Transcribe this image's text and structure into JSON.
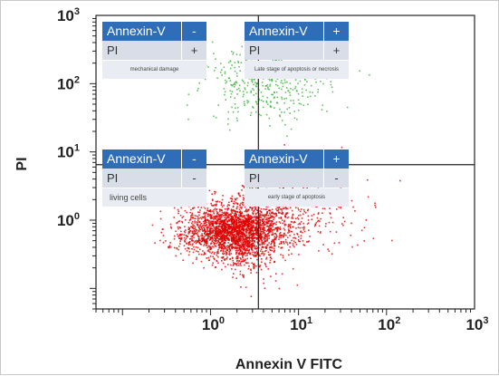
{
  "chart_data": {
    "type": "scatter",
    "title": "",
    "xlabel": "Annexin V FITC",
    "ylabel": "PI",
    "x_scale": "log",
    "y_scale": "log",
    "xlim": [
      0.05,
      1000
    ],
    "ylim": [
      0.05,
      1000
    ],
    "x_ticks": [
      {
        "base": "10",
        "exp": "0",
        "value": 1
      },
      {
        "base": "10",
        "exp": "1",
        "value": 10
      },
      {
        "base": "10",
        "exp": "2",
        "value": 100
      },
      {
        "base": "10",
        "exp": "3",
        "value": 1000
      }
    ],
    "y_ticks": [
      {
        "base": "10",
        "exp": "0",
        "value": 1
      },
      {
        "base": "10",
        "exp": "1",
        "value": 10
      },
      {
        "base": "10",
        "exp": "2",
        "value": 100
      },
      {
        "base": "10",
        "exp": "3",
        "value": 1000
      }
    ],
    "gates": {
      "x": 3.5,
      "y": 6.5
    },
    "series": [
      {
        "color": "#e00000",
        "center": [
          1.7,
          0.7
        ],
        "spread": [
          0.28,
          0.2
        ],
        "approx_points": 3000
      },
      {
        "color": "#3cb43c",
        "center": [
          4.5,
          110
        ],
        "spread": [
          0.35,
          0.28
        ],
        "approx_points": 450
      }
    ],
    "quadrants": [
      {
        "id": "upper-left",
        "annexin_label": "Annexin-V",
        "annexin_sign": "-",
        "pi_label": "PI",
        "pi_sign": "+",
        "description": "mechanical damage"
      },
      {
        "id": "upper-right",
        "annexin_label": "Annexin-V",
        "annexin_sign": "+",
        "pi_label": "PI",
        "pi_sign": "+",
        "description": "Late stage of apoptosis or necrosis"
      },
      {
        "id": "lower-left",
        "annexin_label": "Annexin-V",
        "annexin_sign": "-",
        "pi_label": "PI",
        "pi_sign": "-",
        "description": "living cells"
      },
      {
        "id": "lower-right",
        "annexin_label": "Annexin-V",
        "annexin_sign": "+",
        "pi_label": "PI",
        "pi_sign": "-",
        "description": "early stage of apoptosis"
      }
    ]
  }
}
